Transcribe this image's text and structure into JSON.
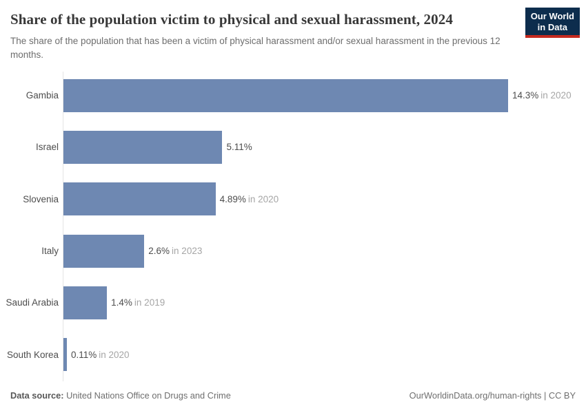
{
  "header": {
    "title": "Share of the population victim to physical and sexual harassment, 2024",
    "subtitle": "The share of the population that has been a victim of physical harassment and/or sexual harassment in the previous 12 months.",
    "logo_line1": "Our World",
    "logo_line2": "in Data"
  },
  "chart_data": {
    "type": "bar",
    "orientation": "horizontal",
    "title": "Share of the population victim to physical and sexual harassment, 2024",
    "categories": [
      "Gambia",
      "Israel",
      "Slovenia",
      "Italy",
      "Saudi Arabia",
      "South Korea"
    ],
    "values": [
      14.3,
      5.11,
      4.89,
      2.6,
      1.4,
      0.11
    ],
    "value_labels": [
      "14.3%",
      "5.11%",
      "4.89%",
      "2.6%",
      "1.4%",
      "0.11%"
    ],
    "year_notes": [
      "in 2020",
      "",
      "in 2020",
      "in 2023",
      "in 2019",
      "in 2020"
    ],
    "xlabel": "",
    "ylabel": "",
    "xlim": [
      0,
      14.3
    ],
    "grid": false,
    "legend": "none",
    "bar_color": "#6e88b2"
  },
  "footer": {
    "datasource_label": "Data source:",
    "datasource_value": " United Nations Office on Drugs and Crime",
    "attribution": "OurWorldinData.org/human-rights | CC BY"
  },
  "colors": {
    "bar": "#6e88b2",
    "axis_line": "#e4e4e4",
    "title_text": "#383838",
    "subtitle_text": "#6d6d6d",
    "value_text": "#4d4d4d",
    "year_text": "#a5a5a5",
    "logo_navy": "#0d2d4d",
    "logo_red": "#c52a1f"
  }
}
